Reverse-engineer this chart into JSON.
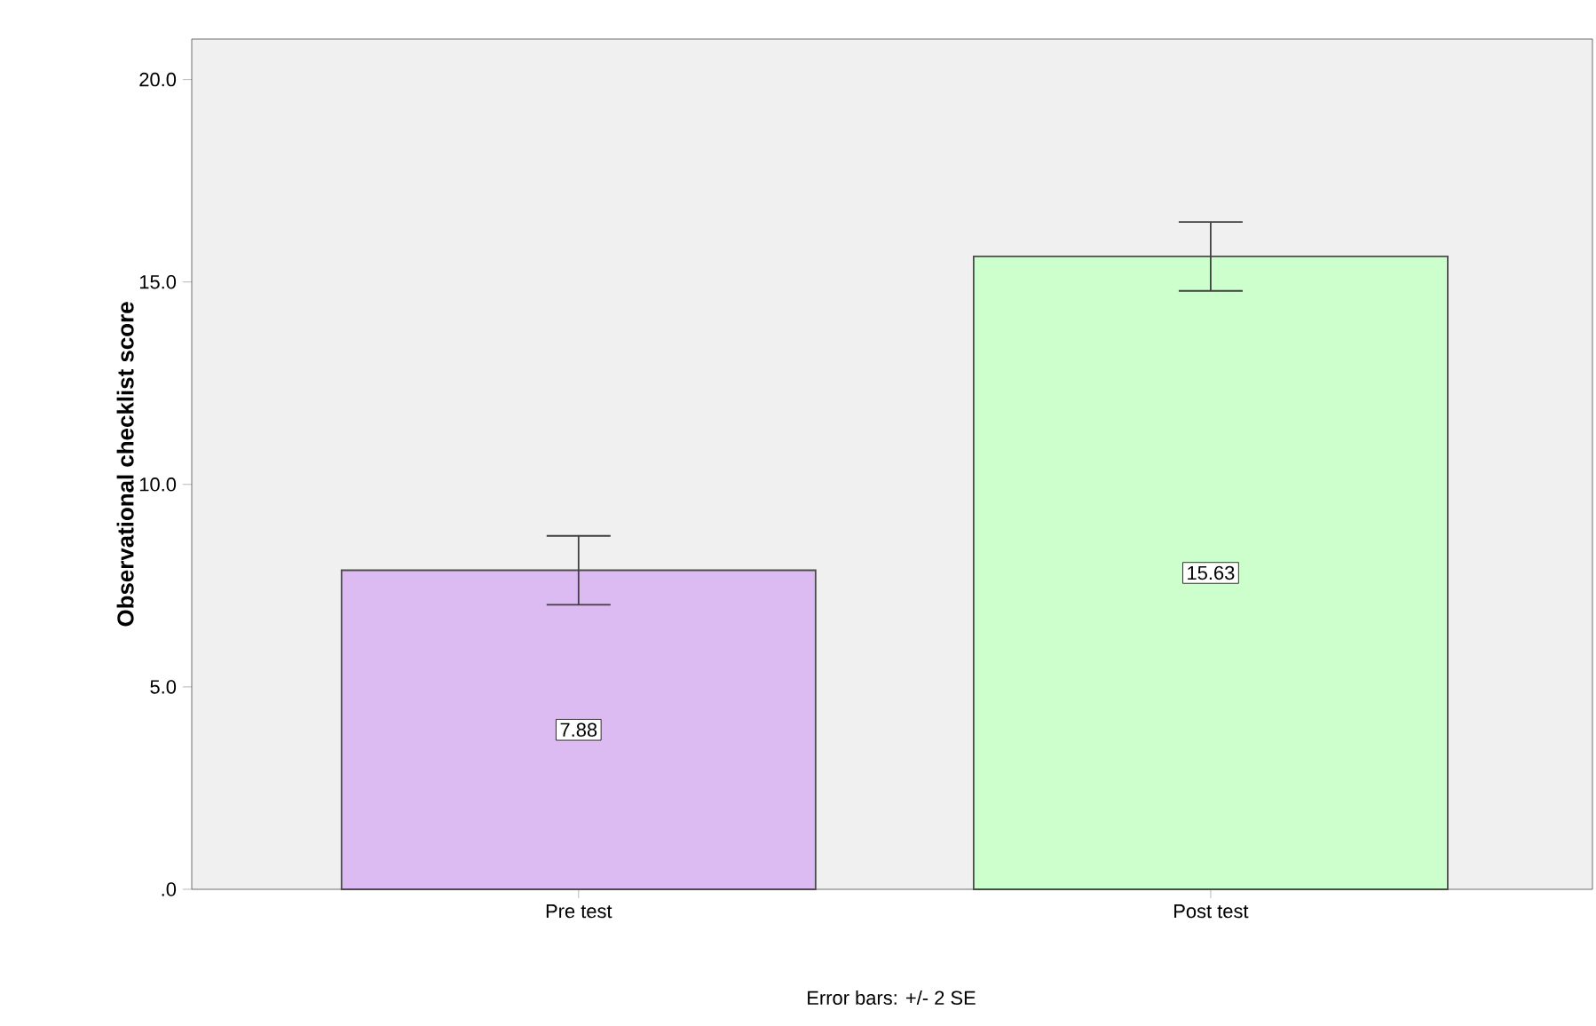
{
  "chart_data": {
    "type": "bar",
    "ylabel": "Observational checklist score",
    "categories": [
      "Pre test",
      "Post test"
    ],
    "values": [
      7.88,
      15.63
    ],
    "colors": [
      "#dcbaf2",
      "#ccffcc"
    ],
    "errors": [
      0.85,
      0.85
    ],
    "ylim": [
      0,
      21
    ],
    "yticks": [
      {
        "value": 0,
        "label": ".0"
      },
      {
        "value": 5,
        "label": "5.0"
      },
      {
        "value": 10,
        "label": "10.0"
      },
      {
        "value": 15,
        "label": "15.0"
      },
      {
        "value": 20,
        "label": "20.0"
      }
    ],
    "data_labels": true,
    "grid": false,
    "annotations": [
      "Error bars: +/- 2 SE"
    ]
  }
}
